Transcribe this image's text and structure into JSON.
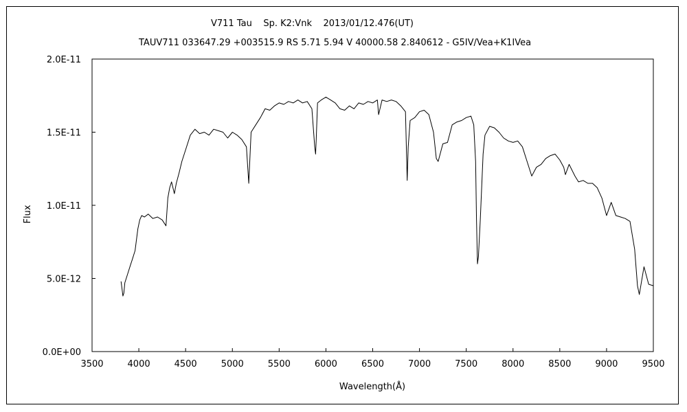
{
  "chart_data": {
    "type": "line",
    "title": "V711 Tau    Sp. K2:Vnk    2013/01/12.476(UT)",
    "subtitle": "TAUV711 033647.29 +003515.9 RS 5.71 5.94 V 40000.58 2.840612 - G5IV/Vea+K1IVea",
    "xlabel": "Wavelength(Å)",
    "ylabel": "Flux",
    "xlim": [
      3500,
      9500
    ],
    "ylim": [
      0,
      2e-11
    ],
    "x_ticks": [
      3500,
      4000,
      4500,
      5000,
      5500,
      6000,
      6500,
      7000,
      7500,
      8000,
      8500,
      9000,
      9500
    ],
    "x_tick_labels": [
      "3500",
      "4000",
      "4500",
      "5000",
      "5500",
      "6000",
      "6500",
      "7000",
      "7500",
      "8000",
      "8500",
      "9000",
      "9500"
    ],
    "y_ticks": [
      0,
      5e-12,
      1e-11,
      1.5e-11,
      2e-11
    ],
    "y_tick_labels": [
      "0.0E+00",
      "5.0E-12",
      "1.0E-11",
      "1.5E-11",
      "2.0E-11"
    ],
    "grid": false,
    "series": [
      {
        "x": [
          3810,
          3820,
          3830,
          3840,
          3850,
          3870,
          3890,
          3910,
          3930,
          3960,
          3990,
          4010,
          4030,
          4060,
          4100,
          4150,
          4200,
          4250,
          4290,
          4310,
          4330,
          4350,
          4380,
          4400,
          4430,
          4460,
          4500,
          4550,
          4600,
          4650,
          4700,
          4750,
          4800,
          4850,
          4900,
          4950,
          5000,
          5050,
          5100,
          5150,
          5175,
          5200,
          5250,
          5300,
          5350,
          5400,
          5450,
          5500,
          5550,
          5600,
          5650,
          5700,
          5750,
          5800,
          5850,
          5880,
          5890,
          5896,
          5910,
          5950,
          6000,
          6050,
          6100,
          6150,
          6200,
          6250,
          6300,
          6350,
          6400,
          6450,
          6500,
          6550,
          6563,
          6600,
          6650,
          6700,
          6750,
          6800,
          6850,
          6869,
          6880,
          6900,
          6950,
          7000,
          7050,
          7100,
          7150,
          7180,
          7200,
          7250,
          7300,
          7350,
          7400,
          7450,
          7500,
          7550,
          7580,
          7600,
          7610,
          7620,
          7630,
          7650,
          7680,
          7700,
          7750,
          7800,
          7850,
          7900,
          7950,
          8000,
          8050,
          8100,
          8150,
          8200,
          8250,
          8300,
          8350,
          8400,
          8450,
          8500,
          8542,
          8560,
          8600,
          8662,
          8700,
          8750,
          8800,
          8850,
          8900,
          8950,
          9000,
          9050,
          9100,
          9150,
          9200,
          9250,
          9300,
          9330,
          9350,
          9400,
          9450,
          9500
        ],
        "y": [
          4.8e-12,
          4.3e-12,
          3.8e-12,
          4e-12,
          4.7e-12,
          5.1e-12,
          5.5e-12,
          5.9e-12,
          6.3e-12,
          6.9e-12,
          8.4e-12,
          9e-12,
          9.3e-12,
          9.2e-12,
          9.4e-12,
          9.1e-12,
          9.2e-12,
          9e-12,
          8.6e-12,
          1.05e-11,
          1.12e-11,
          1.16e-11,
          1.08e-11,
          1.15e-11,
          1.22e-11,
          1.3e-11,
          1.38e-11,
          1.48e-11,
          1.52e-11,
          1.49e-11,
          1.5e-11,
          1.48e-11,
          1.52e-11,
          1.51e-11,
          1.5e-11,
          1.46e-11,
          1.5e-11,
          1.48e-11,
          1.45e-11,
          1.4e-11,
          1.15e-11,
          1.5e-11,
          1.55e-11,
          1.6e-11,
          1.66e-11,
          1.65e-11,
          1.68e-11,
          1.7e-11,
          1.69e-11,
          1.71e-11,
          1.7e-11,
          1.72e-11,
          1.7e-11,
          1.71e-11,
          1.66e-11,
          1.4e-11,
          1.35e-11,
          1.45e-11,
          1.7e-11,
          1.72e-11,
          1.74e-11,
          1.72e-11,
          1.7e-11,
          1.66e-11,
          1.65e-11,
          1.68e-11,
          1.66e-11,
          1.7e-11,
          1.69e-11,
          1.71e-11,
          1.7e-11,
          1.72e-11,
          1.62e-11,
          1.72e-11,
          1.71e-11,
          1.72e-11,
          1.71e-11,
          1.68e-11,
          1.64e-11,
          1.17e-11,
          1.4e-11,
          1.58e-11,
          1.6e-11,
          1.64e-11,
          1.65e-11,
          1.62e-11,
          1.5e-11,
          1.32e-11,
          1.3e-11,
          1.42e-11,
          1.43e-11,
          1.55e-11,
          1.57e-11,
          1.58e-11,
          1.6e-11,
          1.61e-11,
          1.55e-11,
          1.3e-11,
          9e-12,
          6e-12,
          6.5e-12,
          9e-12,
          1.35e-11,
          1.48e-11,
          1.54e-11,
          1.53e-11,
          1.5e-11,
          1.46e-11,
          1.44e-11,
          1.43e-11,
          1.44e-11,
          1.4e-11,
          1.3e-11,
          1.2e-11,
          1.26e-11,
          1.28e-11,
          1.32e-11,
          1.34e-11,
          1.35e-11,
          1.31e-11,
          1.26e-11,
          1.21e-11,
          1.28e-11,
          1.2e-11,
          1.16e-11,
          1.17e-11,
          1.15e-11,
          1.15e-11,
          1.12e-11,
          1.05e-11,
          9.3e-12,
          1.02e-11,
          9.3e-12,
          9.2e-12,
          9.1e-12,
          8.9e-12,
          7e-12,
          4.5e-12,
          3.9e-12,
          5.8e-12,
          4.6e-12,
          4.5e-12
        ]
      }
    ]
  }
}
